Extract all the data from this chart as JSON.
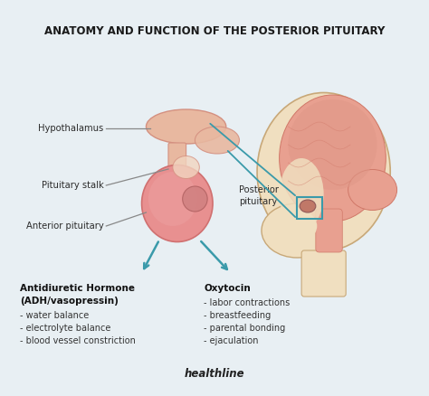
{
  "title": "ANATOMY AND FUNCTION OF THE POSTERIOR PITUITARY",
  "bg_color": "#e8eff3",
  "title_color": "#1a1a1a",
  "title_fontsize": 8.5,
  "arrow_color": "#3a9aaa",
  "label_color": "#2c2c2c",
  "bold_label_color": "#111111",
  "footer": "healthline",
  "adh_title_line1": "Antidiuretic Hormone",
  "adh_title_line2": "(ADH/vasopressin)",
  "adh_items": [
    "- water balance",
    "- electrolyte balance",
    "- blood vessel constriction"
  ],
  "oxy_title": "Oxytocin",
  "oxy_items": [
    "- labor contractions",
    "- breastfeeding",
    "- parental bonding",
    "- ejaculation"
  ]
}
